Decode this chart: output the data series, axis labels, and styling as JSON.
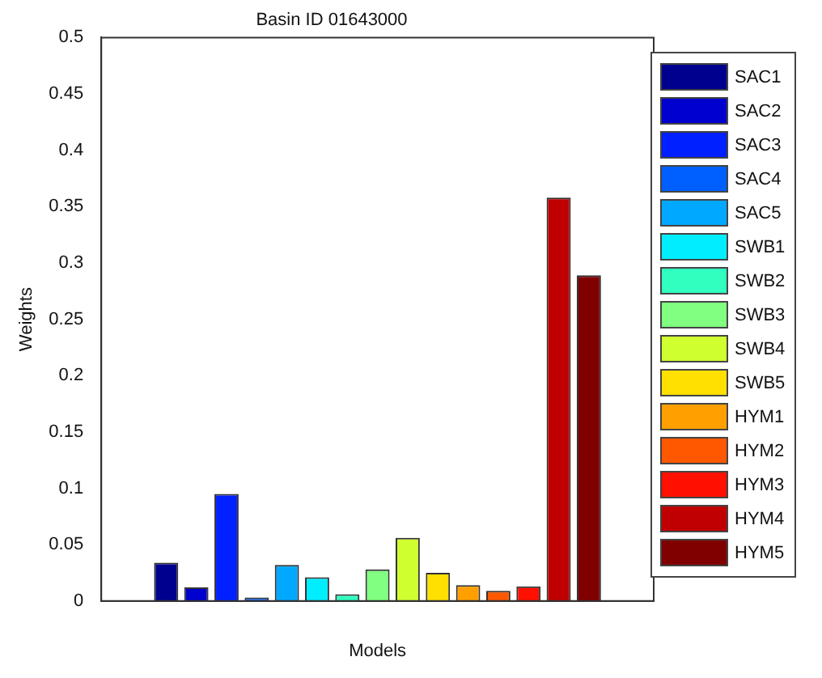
{
  "chart_data": {
    "type": "bar",
    "title": "Basin ID 01643000",
    "xlabel": "Models",
    "ylabel": "Weights",
    "categories": [
      null
    ],
    "series": [
      {
        "name": "SAC1",
        "color": "#00008f",
        "values": [
          0.034
        ]
      },
      {
        "name": "SAC2",
        "color": "#0000cf",
        "values": [
          0.012
        ]
      },
      {
        "name": "SAC3",
        "color": "#0020ff",
        "values": [
          0.095
        ]
      },
      {
        "name": "SAC4",
        "color": "#0060ff",
        "values": [
          0.003
        ]
      },
      {
        "name": "SAC5",
        "color": "#00a8ff",
        "values": [
          0.032
        ]
      },
      {
        "name": "SWB1",
        "color": "#00eeff",
        "values": [
          0.021
        ]
      },
      {
        "name": "SWB2",
        "color": "#30ffc0",
        "values": [
          0.006
        ]
      },
      {
        "name": "SWB3",
        "color": "#80ff80",
        "values": [
          0.028
        ]
      },
      {
        "name": "SWB4",
        "color": "#d0ff30",
        "values": [
          0.056
        ]
      },
      {
        "name": "SWB5",
        "color": "#ffe000",
        "values": [
          0.025
        ]
      },
      {
        "name": "HYM1",
        "color": "#ffa000",
        "values": [
          0.014
        ]
      },
      {
        "name": "HYM2",
        "color": "#ff5800",
        "values": [
          0.009
        ]
      },
      {
        "name": "HYM3",
        "color": "#ff1000",
        "values": [
          0.013
        ]
      },
      {
        "name": "HYM4",
        "color": "#c00000",
        "values": [
          0.358
        ]
      },
      {
        "name": "HYM5",
        "color": "#800000",
        "values": [
          0.289
        ]
      }
    ],
    "ylim": [
      0,
      0.5
    ],
    "yticks": [
      0,
      0.05,
      0.1,
      0.15,
      0.2,
      0.25,
      0.3,
      0.35,
      0.4,
      0.45,
      0.5
    ],
    "grid": false,
    "legend": "right"
  }
}
